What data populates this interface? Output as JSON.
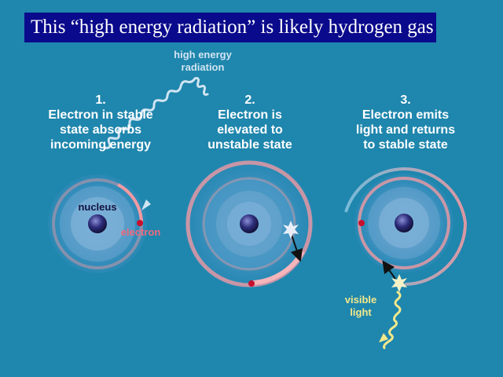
{
  "banner": {
    "text": "This “high energy radiation” is likely hydrogen gas"
  },
  "steps": [
    {
      "number": "1.",
      "lines": [
        "Electron in stable",
        "state absorbs",
        "incoming energy"
      ]
    },
    {
      "number": "2.",
      "lines": [
        "Electron is",
        "elevated to",
        "unstable state"
      ]
    },
    {
      "number": "3.",
      "lines": [
        "Electron emits",
        "light and returns",
        "to stable state"
      ]
    }
  ],
  "labels": {
    "radiation": [
      "high energy",
      "radiation"
    ],
    "nucleus": "nucleus",
    "electron": "electron",
    "visible": [
      "visible",
      "light"
    ]
  },
  "colors": {
    "background": "#1f86ad",
    "banner": "#0a0a8c",
    "orbit": "#f09aa2",
    "nucleus": "#1c1c52",
    "electron": "#c8102e",
    "radiation": "#d0e4f2",
    "visible_light": "#f2e88c"
  }
}
